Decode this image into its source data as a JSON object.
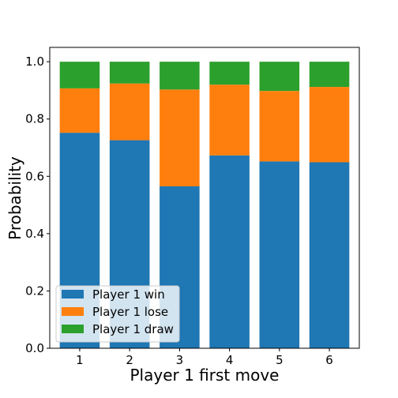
{
  "chart_data": {
    "type": "bar",
    "stacked": true,
    "categories": [
      "1",
      "2",
      "3",
      "4",
      "5",
      "6"
    ],
    "series": [
      {
        "name": "Player 1 win",
        "color": "#1f77b4",
        "values": [
          0.752,
          0.726,
          0.565,
          0.673,
          0.652,
          0.649
        ]
      },
      {
        "name": "Player 1 lose",
        "color": "#ff7f0e",
        "values": [
          0.155,
          0.198,
          0.338,
          0.247,
          0.246,
          0.263
        ]
      },
      {
        "name": "Player 1 draw",
        "color": "#2ca02c",
        "values": [
          0.093,
          0.076,
          0.097,
          0.08,
          0.102,
          0.088
        ]
      }
    ],
    "xlabel": "Player 1 first move",
    "ylabel": "Probability",
    "ylim": [
      0,
      1.05
    ],
    "yticks": [
      "0.0",
      "0.2",
      "0.4",
      "0.6",
      "0.8",
      "1.0"
    ],
    "grid": false,
    "legend_position": "lower-left"
  }
}
